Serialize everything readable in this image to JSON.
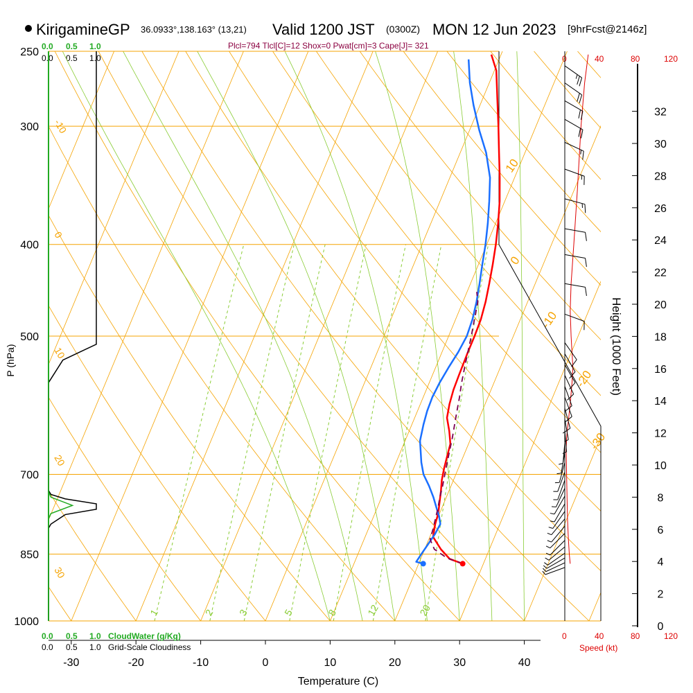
{
  "header": {
    "site": "KirigamineGP",
    "coords": "36.0933°,138.163° (13,21)",
    "valid": "Valid 1200 JST",
    "zulu": "(0300Z)",
    "date": "MON 12 Jun 2023",
    "fcst": "[9hrFcst@2146z]",
    "indices": "Plcl=794 Tlcl[C]=12 Shox=0 Pwat[cm]=3 Cape[J]= 321"
  },
  "colors": {
    "temperature": "#ff0000",
    "dewpoint": "#1a6fff",
    "parcel": "#7a0050",
    "isotherm": "#f5a300",
    "mixing_ratio": "#88cc33",
    "cloud_water": "#22aa22",
    "indices_text": "#8b0040",
    "wind_speed": "#dd0000"
  },
  "labels": {
    "x_axis": "Temperature (C)",
    "y_axis": "P (hPa)",
    "height_axis": "Height (1000 Feet)",
    "cloud_water": "CloudWater (g/Kg)",
    "cloudiness": "Grid-Scale Cloudiness",
    "speed": "Speed (kt)",
    "cloud_scale": [
      "0.0",
      "0.5",
      "1.0"
    ],
    "speed_ticks": [
      "0",
      "40",
      "80",
      "120"
    ]
  },
  "chart_data": {
    "type": "line",
    "title": "KirigamineGP Valid 1200 JST (0300Z) MON 12 Jun 2023",
    "xlabel": "Temperature (C)",
    "ylabel": "P (hPa)",
    "y_scale": "log",
    "xlim": [
      -35,
      50
    ],
    "ylim": [
      1000,
      250
    ],
    "x_ticks": [
      "-30",
      "-20",
      "-10",
      "0",
      "10",
      "20",
      "30",
      "40"
    ],
    "x_tick_values": [
      -30,
      -20,
      -10,
      0,
      10,
      20,
      30,
      40
    ],
    "p_ticks": [
      "250",
      "300",
      "400",
      "500",
      "700",
      "850",
      "1000"
    ],
    "p_tick_values": [
      250,
      300,
      400,
      500,
      700,
      850,
      1000
    ],
    "height_ticks": [
      "0",
      "2",
      "4",
      "6",
      "8",
      "10",
      "12",
      "14",
      "16",
      "18",
      "20",
      "22",
      "24",
      "26",
      "28",
      "30",
      "32"
    ],
    "mixing_ratio_labels": [
      "1",
      "2",
      "3",
      "5",
      "8",
      "12",
      "20"
    ],
    "dry_adiabat_labels": [
      "-10",
      "0",
      "10",
      "20",
      "30"
    ],
    "moist_adiabat_labels": [
      "10",
      "0",
      "-10",
      "-20",
      "-30"
    ],
    "series": [
      {
        "name": "Temperature",
        "points": [
          [
            26.8,
            870
          ],
          [
            24.5,
            860
          ],
          [
            22.5,
            840
          ],
          [
            20.5,
            815
          ],
          [
            20.0,
            790
          ],
          [
            19.8,
            770
          ],
          [
            19.3,
            750
          ],
          [
            18.8,
            730
          ],
          [
            18.2,
            710
          ],
          [
            17.8,
            690
          ],
          [
            17.5,
            670
          ],
          [
            17.2,
            650
          ],
          [
            16.2,
            630
          ],
          [
            15.0,
            610
          ],
          [
            14.5,
            590
          ],
          [
            14.2,
            570
          ],
          [
            14.1,
            550
          ],
          [
            14.0,
            520
          ],
          [
            14.0,
            500
          ],
          [
            13.9,
            480
          ],
          [
            13.5,
            460
          ],
          [
            12.9,
            440
          ],
          [
            12.2,
            420
          ],
          [
            11.4,
            400
          ],
          [
            10.4,
            380
          ],
          [
            9.2,
            360
          ],
          [
            7.7,
            340
          ],
          [
            6.0,
            320
          ],
          [
            4.2,
            300
          ],
          [
            2.2,
            280
          ],
          [
            0.3,
            262
          ],
          [
            -1.5,
            252
          ]
        ]
      },
      {
        "name": "Dewpoint",
        "points": [
          [
            20.7,
            870
          ],
          [
            19.5,
            866
          ],
          [
            19.8,
            850
          ],
          [
            20.2,
            830
          ],
          [
            20.6,
            810
          ],
          [
            20.8,
            790
          ],
          [
            20.1,
            775
          ],
          [
            19.2,
            760
          ],
          [
            18.0,
            740
          ],
          [
            16.6,
            720
          ],
          [
            15.0,
            700
          ],
          [
            13.9,
            680
          ],
          [
            13.0,
            660
          ],
          [
            12.3,
            645
          ],
          [
            11.8,
            620
          ],
          [
            11.5,
            600
          ],
          [
            11.4,
            580
          ],
          [
            11.6,
            560
          ],
          [
            12.0,
            540
          ],
          [
            12.5,
            520
          ],
          [
            12.8,
            500
          ],
          [
            12.6,
            480
          ],
          [
            12.1,
            460
          ],
          [
            11.4,
            440
          ],
          [
            10.6,
            420
          ],
          [
            9.8,
            400
          ],
          [
            8.8,
            380
          ],
          [
            7.6,
            360
          ],
          [
            6.2,
            340
          ],
          [
            4.0,
            320
          ],
          [
            1.5,
            303
          ],
          [
            -1.0,
            285
          ],
          [
            -3.0,
            270
          ],
          [
            -4.7,
            255
          ]
        ]
      },
      {
        "name": "Parcel",
        "points": [
          [
            26.8,
            870
          ],
          [
            24.0,
            858
          ],
          [
            21.5,
            840
          ],
          [
            20.2,
            820
          ],
          [
            20.0,
            800
          ],
          [
            19.7,
            780
          ],
          [
            19.4,
            760
          ],
          [
            19.0,
            740
          ],
          [
            18.7,
            720
          ],
          [
            18.3,
            700
          ],
          [
            17.9,
            680
          ],
          [
            17.5,
            660
          ],
          [
            17.1,
            640
          ],
          [
            16.6,
            620
          ],
          [
            16.1,
            600
          ],
          [
            15.6,
            580
          ],
          [
            15.0,
            560
          ],
          [
            14.5,
            540
          ],
          [
            14.0,
            520
          ],
          [
            13.5,
            500
          ],
          [
            12.9,
            480
          ],
          [
            12.3,
            460
          ],
          [
            11.5,
            449
          ]
        ]
      }
    ],
    "surface_points": [
      {
        "name": "Temperature",
        "x": 26.8,
        "p": 870
      },
      {
        "name": "Dewpoint",
        "x": 20.7,
        "p": 870
      }
    ],
    "cloud_water_profile": [
      [
        0,
        1000
      ],
      [
        0,
        780
      ],
      [
        0.05,
        770
      ],
      [
        0.5,
        755
      ],
      [
        0.05,
        740
      ],
      [
        0,
        730
      ],
      [
        0,
        250
      ]
    ],
    "cloudiness_profile": [
      [
        0,
        1000
      ],
      [
        0,
        798
      ],
      [
        0.05,
        790
      ],
      [
        0.35,
        772
      ],
      [
        1.0,
        762
      ],
      [
        1.0,
        752
      ],
      [
        0.35,
        743
      ],
      [
        0.05,
        735
      ],
      [
        0,
        728
      ],
      [
        0,
        560
      ],
      [
        0.3,
        530
      ],
      [
        1.0,
        510
      ],
      [
        1.0,
        250
      ]
    ],
    "wind_speed_profile": [
      [
        6,
        870
      ],
      [
        5,
        850
      ],
      [
        4,
        820
      ],
      [
        3,
        780
      ],
      [
        2.5,
        740
      ],
      [
        2,
        700
      ],
      [
        1.5,
        660
      ],
      [
        2,
        640
      ],
      [
        3.5,
        620
      ],
      [
        6,
        590
      ],
      [
        8,
        560
      ],
      [
        9,
        540
      ],
      [
        8,
        520
      ],
      [
        7,
        500
      ],
      [
        6,
        470
      ],
      [
        7,
        440
      ],
      [
        10,
        400
      ],
      [
        14,
        350
      ],
      [
        18,
        300
      ],
      [
        22,
        270
      ],
      [
        26,
        252
      ]
    ],
    "wind_barbs": [
      {
        "p": 878,
        "speed": 5,
        "dir": 250
      },
      {
        "p": 868,
        "speed": 5,
        "dir": 245
      },
      {
        "p": 858,
        "speed": 5,
        "dir": 240
      },
      {
        "p": 848,
        "speed": 5,
        "dir": 235
      },
      {
        "p": 835,
        "speed": 5,
        "dir": 230
      },
      {
        "p": 822,
        "speed": 5,
        "dir": 225
      },
      {
        "p": 808,
        "speed": 5,
        "dir": 225
      },
      {
        "p": 794,
        "speed": 5,
        "dir": 220
      },
      {
        "p": 780,
        "speed": 5,
        "dir": 220
      },
      {
        "p": 766,
        "speed": 5,
        "dir": 215
      },
      {
        "p": 752,
        "speed": 5,
        "dir": 210
      },
      {
        "p": 738,
        "speed": 5,
        "dir": 210
      },
      {
        "p": 724,
        "speed": 5,
        "dir": 205
      },
      {
        "p": 710,
        "speed": 5,
        "dir": 200
      },
      {
        "p": 696,
        "speed": 5,
        "dir": 200
      },
      {
        "p": 680,
        "speed": 5,
        "dir": 195
      },
      {
        "p": 664,
        "speed": 5,
        "dir": 190
      },
      {
        "p": 648,
        "speed": 5,
        "dir": 185
      },
      {
        "p": 630,
        "speed": 5,
        "dir": 175
      },
      {
        "p": 612,
        "speed": 5,
        "dir": 170
      },
      {
        "p": 596,
        "speed": 10,
        "dir": 165
      },
      {
        "p": 580,
        "speed": 10,
        "dir": 160
      },
      {
        "p": 565,
        "speed": 10,
        "dir": 160
      },
      {
        "p": 550,
        "speed": 10,
        "dir": 155
      },
      {
        "p": 536,
        "speed": 10,
        "dir": 150
      },
      {
        "p": 522,
        "speed": 10,
        "dir": 150
      },
      {
        "p": 508,
        "speed": 10,
        "dir": 145
      },
      {
        "p": 474,
        "speed": 10,
        "dir": 110
      },
      {
        "p": 440,
        "speed": 10,
        "dir": 100
      },
      {
        "p": 410,
        "speed": 10,
        "dir": 100
      },
      {
        "p": 385,
        "speed": 10,
        "dir": 100
      },
      {
        "p": 358,
        "speed": 15,
        "dir": 105
      },
      {
        "p": 333,
        "speed": 15,
        "dir": 110
      },
      {
        "p": 312,
        "speed": 15,
        "dir": 115
      },
      {
        "p": 295,
        "speed": 20,
        "dir": 120
      },
      {
        "p": 282,
        "speed": 20,
        "dir": 120
      },
      {
        "p": 270,
        "speed": 20,
        "dir": 125
      },
      {
        "p": 259,
        "speed": 25,
        "dir": 125
      }
    ]
  }
}
